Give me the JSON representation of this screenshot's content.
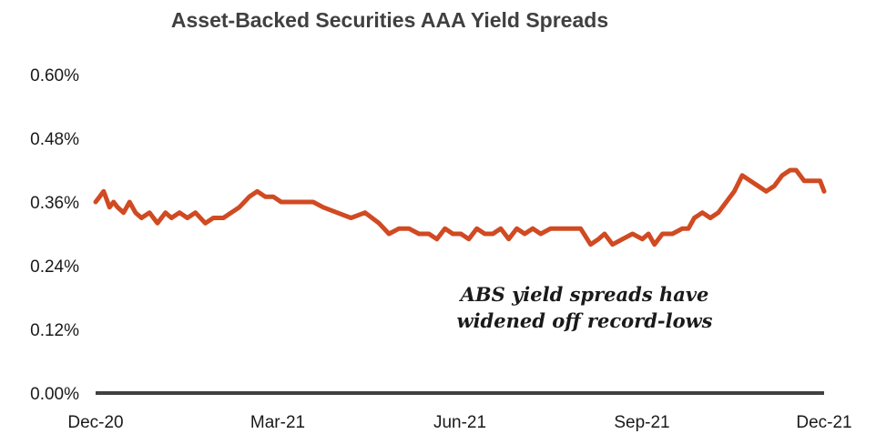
{
  "chart_data": {
    "type": "line",
    "title": "Asset-Backed Securities AAA Yield Spreads",
    "xlabel": "",
    "ylabel": "",
    "ylim": [
      0,
      0.6
    ],
    "yticks": [
      0.0,
      0.12,
      0.24,
      0.36,
      0.48,
      0.6
    ],
    "ytick_labels": [
      "0.00%",
      "0.12%",
      "0.24%",
      "0.36%",
      "0.48%",
      "0.60%"
    ],
    "xticks": [
      "Dec-20",
      "Mar-21",
      "Jun-21",
      "Sep-21",
      "Dec-21"
    ],
    "grid": false,
    "legend": "none",
    "line_color": "#d04a22",
    "axis_color": "#404040",
    "annotation": [
      "ABS yield spreads have",
      "widened off record-lows"
    ],
    "series": [
      {
        "x": [
          "2020-12-01",
          "2020-12-03",
          "2020-12-05",
          "2020-12-08",
          "2020-12-10",
          "2020-12-12",
          "2020-12-15",
          "2020-12-18",
          "2020-12-21",
          "2020-12-24",
          "2020-12-28",
          "2021-01-01",
          "2021-01-05",
          "2021-01-08",
          "2021-01-12",
          "2021-01-16",
          "2021-01-20",
          "2021-01-25",
          "2021-01-29",
          "2021-02-03",
          "2021-02-07",
          "2021-02-11",
          "2021-02-16",
          "2021-02-20",
          "2021-02-24",
          "2021-02-28",
          "2021-03-04",
          "2021-03-08",
          "2021-03-12",
          "2021-03-16",
          "2021-03-20",
          "2021-03-25",
          "2021-04-01",
          "2021-04-08",
          "2021-04-15",
          "2021-04-22",
          "2021-04-27",
          "2021-05-02",
          "2021-05-07",
          "2021-05-12",
          "2021-05-17",
          "2021-05-21",
          "2021-05-25",
          "2021-05-29",
          "2021-06-02",
          "2021-06-06",
          "2021-06-10",
          "2021-06-14",
          "2021-06-18",
          "2021-06-22",
          "2021-06-26",
          "2021-06-30",
          "2021-07-04",
          "2021-07-08",
          "2021-07-12",
          "2021-07-17",
          "2021-07-22",
          "2021-07-27",
          "2021-08-01",
          "2021-08-06",
          "2021-08-10",
          "2021-08-13",
          "2021-08-17",
          "2021-08-22",
          "2021-08-27",
          "2021-09-01",
          "2021-09-04",
          "2021-09-07",
          "2021-09-11",
          "2021-09-16",
          "2021-09-21",
          "2021-09-24",
          "2021-09-27",
          "2021-10-01",
          "2021-10-05",
          "2021-10-09",
          "2021-10-13",
          "2021-10-17",
          "2021-10-21",
          "2021-10-25",
          "2021-10-29",
          "2021-11-02",
          "2021-11-06",
          "2021-11-10",
          "2021-11-14",
          "2021-11-17",
          "2021-11-21",
          "2021-11-25",
          "2021-11-29",
          "2021-12-01"
        ],
        "values": [
          0.36,
          0.37,
          0.38,
          0.35,
          0.36,
          0.35,
          0.34,
          0.36,
          0.34,
          0.33,
          0.34,
          0.32,
          0.34,
          0.33,
          0.34,
          0.33,
          0.34,
          0.32,
          0.33,
          0.33,
          0.34,
          0.35,
          0.37,
          0.38,
          0.37,
          0.37,
          0.36,
          0.36,
          0.36,
          0.36,
          0.36,
          0.35,
          0.34,
          0.33,
          0.34,
          0.32,
          0.3,
          0.31,
          0.31,
          0.3,
          0.3,
          0.29,
          0.31,
          0.3,
          0.3,
          0.29,
          0.31,
          0.3,
          0.3,
          0.31,
          0.29,
          0.31,
          0.3,
          0.31,
          0.3,
          0.31,
          0.31,
          0.31,
          0.31,
          0.28,
          0.29,
          0.3,
          0.28,
          0.29,
          0.3,
          0.29,
          0.3,
          0.28,
          0.3,
          0.3,
          0.31,
          0.31,
          0.33,
          0.34,
          0.33,
          0.34,
          0.36,
          0.38,
          0.41,
          0.4,
          0.39,
          0.38,
          0.39,
          0.41,
          0.42,
          0.42,
          0.4,
          0.4,
          0.4,
          0.38
        ]
      }
    ]
  }
}
